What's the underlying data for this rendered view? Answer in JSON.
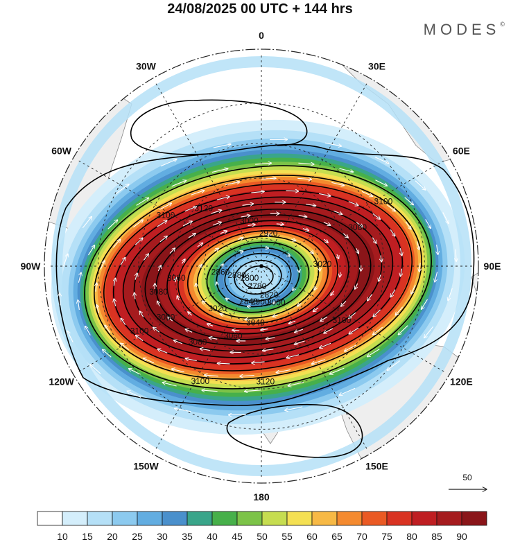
{
  "title": "24/08/2025  00 UTC  + 144 hrs",
  "brand": "MODES",
  "brand_mark": "©",
  "longitude_labels": [
    {
      "text": "0",
      "lon": 0
    },
    {
      "text": "30E",
      "lon": 30
    },
    {
      "text": "60E",
      "lon": 60
    },
    {
      "text": "90E",
      "lon": 90
    },
    {
      "text": "120E",
      "lon": 120
    },
    {
      "text": "150E",
      "lon": 150
    },
    {
      "text": "180",
      "lon": 180
    },
    {
      "text": "150W",
      "lon": -150
    },
    {
      "text": "120W",
      "lon": -120
    },
    {
      "text": "90W",
      "lon": -90
    },
    {
      "text": "60W",
      "lon": -60
    },
    {
      "text": "30W",
      "lon": -30
    }
  ],
  "contour_labels": [
    {
      "text": "3120",
      "lon": -45,
      "lat": -48
    },
    {
      "text": "3100",
      "lon": -62,
      "lat": -36
    },
    {
      "text": "3100",
      "lon": 62,
      "lat": -24
    },
    {
      "text": "3080",
      "lon": 68,
      "lat": -38
    },
    {
      "text": "3020",
      "lon": 88,
      "lat": -58
    },
    {
      "text": "3060",
      "lon": -98,
      "lat": -46
    },
    {
      "text": "3080",
      "lon": -104,
      "lat": -37
    },
    {
      "text": "3100",
      "lon": -118,
      "lat": -24
    },
    {
      "text": "3080",
      "lon": -118,
      "lat": -36
    },
    {
      "text": "3080",
      "lon": -140,
      "lat": -40
    },
    {
      "text": "3060",
      "lon": -158,
      "lat": -51
    },
    {
      "text": "3040",
      "lon": -174,
      "lat": -60
    },
    {
      "text": "3020",
      "lon": -134,
      "lat": -58
    },
    {
      "text": "3000",
      "lon": 158,
      "lat": -69
    },
    {
      "text": "3100",
      "lon": -152,
      "lat": -27
    },
    {
      "text": "3100",
      "lon": 124,
      "lat": -41
    },
    {
      "text": "3120",
      "lon": 178,
      "lat": -33
    },
    {
      "text": "2900",
      "lon": -178,
      "lat": -71
    },
    {
      "text": "2840",
      "lon": -160,
      "lat": -70
    },
    {
      "text": "2820",
      "lon": 165,
      "lat": -74
    },
    {
      "text": "2780",
      "lon": -168,
      "lat": -79
    },
    {
      "text": "2800",
      "lon": -135,
      "lat": -81
    },
    {
      "text": "2880",
      "lon": -110,
      "lat": -76
    },
    {
      "text": "2860",
      "lon": -98,
      "lat": -68
    },
    {
      "text": "3000",
      "lon": -15,
      "lat": -65
    },
    {
      "text": "2920",
      "lon": 12,
      "lat": -72
    }
  ],
  "colorbar": {
    "labels": [
      "10",
      "15",
      "20",
      "25",
      "30",
      "35",
      "40",
      "45",
      "50",
      "55",
      "60",
      "65",
      "70",
      "75",
      "80",
      "85",
      "90"
    ],
    "colors": [
      "#ffffff",
      "#d4eefb",
      "#b5e0f7",
      "#8ccaef",
      "#62ade1",
      "#4a90cc",
      "#3aa58a",
      "#47b04a",
      "#7cc348",
      "#c6dd50",
      "#f4e052",
      "#f7b945",
      "#f48a2f",
      "#ea5a24",
      "#d93322",
      "#bf1e22",
      "#a51b1e",
      "#8a1519"
    ]
  },
  "reference_vector": {
    "label": "50"
  },
  "colors": {
    "land": "#eeeeee",
    "coast": "#888888",
    "grid": "#222222",
    "contour": "#000000",
    "arrow": "#ffffff"
  },
  "chart_data": {
    "type": "heatmap",
    "projection": "south polar stereographic",
    "lon_labels": [
      "0",
      "30E",
      "60E",
      "90E",
      "120E",
      "150E",
      "180",
      "150W",
      "120W",
      "90W",
      "60W",
      "30W"
    ],
    "field": "wind speed",
    "contour_field": "geopotential height",
    "colorbar_levels": [
      10,
      15,
      20,
      25,
      30,
      35,
      40,
      45,
      50,
      55,
      60,
      65,
      70,
      75,
      80,
      85,
      90
    ],
    "contour_levels_labeled": [
      2780,
      2800,
      2820,
      2840,
      2860,
      2880,
      2900,
      2920,
      3000,
      3020,
      3040,
      3060,
      3080,
      3100,
      3120
    ],
    "reference_vector": 50
  }
}
